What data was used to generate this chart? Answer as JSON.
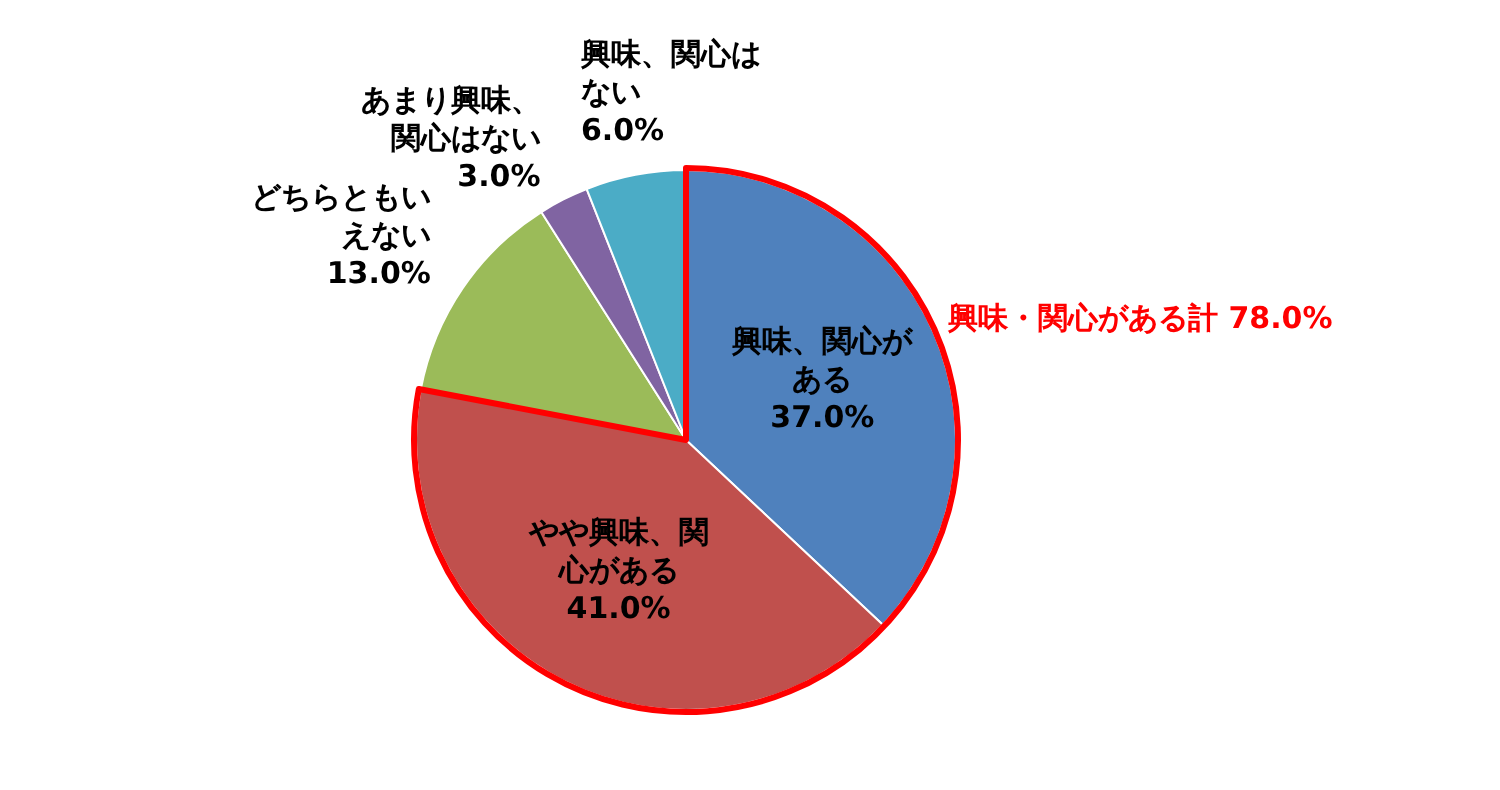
{
  "chart_data": {
    "type": "pie",
    "categories": [
      "興味、関心がある",
      "やや興味、関心がある",
      "どちらともいえない",
      "あまり興味、関心はない",
      "興味、関心はない"
    ],
    "values": [
      37.0,
      41.0,
      13.0,
      3.0,
      6.0
    ],
    "value_labels": [
      "37.0%",
      "41.0%",
      "13.0%",
      "3.0%",
      "6.0%"
    ],
    "colors": [
      "#4f81bd",
      "#c0504d",
      "#9bbb59",
      "#8064a2",
      "#4bacc6"
    ],
    "annotations": [
      "興味・関心がある計 78.0%"
    ],
    "legend": false
  }
}
